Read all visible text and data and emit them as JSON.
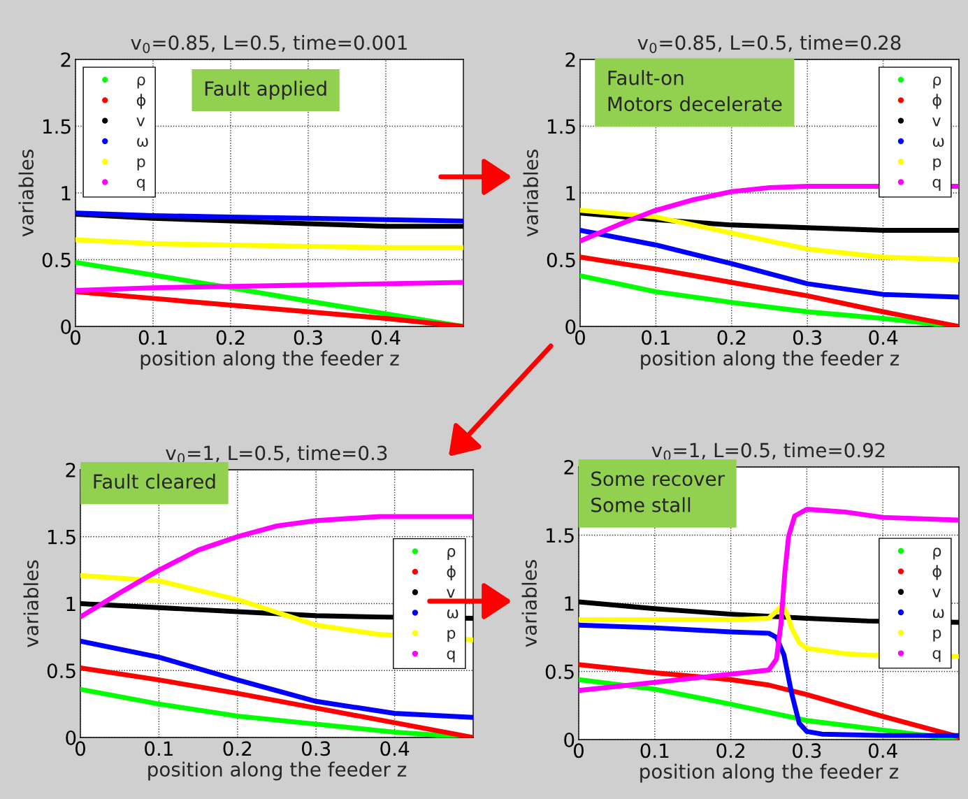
{
  "chart_data": [
    {
      "type": "line",
      "title": "v$_{0}$=0.85, L=0.5, time=0.001",
      "xlabel": "position along the feeder z",
      "ylabel": "variables",
      "xlim": [
        0,
        0.5
      ],
      "ylim": [
        0,
        2
      ],
      "xticks": [
        0,
        0.1,
        0.2,
        0.3,
        0.4
      ],
      "yticks": [
        0,
        0.5,
        1,
        1.5,
        2
      ],
      "grid": true,
      "legend": "top left",
      "annotations": [
        "Fault applied"
      ],
      "series": [
        {
          "name": "ρ",
          "color": "#00ff00",
          "x": [
            0,
            0.1,
            0.2,
            0.3,
            0.4,
            0.5
          ],
          "values": [
            0.48,
            0.385,
            0.29,
            0.19,
            0.095,
            0.0
          ]
        },
        {
          "name": "ϕ",
          "color": "#ff0000",
          "x": [
            0,
            0.1,
            0.2,
            0.3,
            0.4,
            0.5
          ],
          "values": [
            0.26,
            0.21,
            0.16,
            0.11,
            0.06,
            0.0
          ]
        },
        {
          "name": "v",
          "color": "#000000",
          "x": [
            0,
            0.1,
            0.2,
            0.3,
            0.4,
            0.5
          ],
          "values": [
            0.84,
            0.81,
            0.79,
            0.77,
            0.75,
            0.75
          ]
        },
        {
          "name": "ω",
          "color": "#0000ff",
          "x": [
            0,
            0.1,
            0.2,
            0.3,
            0.4,
            0.5
          ],
          "values": [
            0.85,
            0.83,
            0.82,
            0.81,
            0.8,
            0.79
          ]
        },
        {
          "name": "p",
          "color": "#ffff00",
          "x": [
            0,
            0.1,
            0.2,
            0.3,
            0.4,
            0.5
          ],
          "values": [
            0.65,
            0.62,
            0.61,
            0.6,
            0.59,
            0.59
          ]
        },
        {
          "name": "q",
          "color": "#ff00ff",
          "x": [
            0,
            0.1,
            0.2,
            0.3,
            0.4,
            0.5
          ],
          "values": [
            0.27,
            0.29,
            0.3,
            0.31,
            0.32,
            0.33
          ]
        }
      ]
    },
    {
      "type": "line",
      "title": "v$_{0}$=0.85, L=0.5, time=0.28",
      "xlabel": "position along the feeder z",
      "ylabel": "variables",
      "xlim": [
        0,
        0.5
      ],
      "ylim": [
        0,
        2
      ],
      "xticks": [
        0,
        0.1,
        0.2,
        0.3,
        0.4
      ],
      "yticks": [
        0,
        0.5,
        1,
        1.5,
        2
      ],
      "grid": true,
      "legend": "top right",
      "annotations": [
        "Fault-on\nMotors decelerate"
      ],
      "series": [
        {
          "name": "ρ",
          "color": "#00ff00",
          "x": [
            0,
            0.1,
            0.2,
            0.3,
            0.4,
            0.5
          ],
          "values": [
            0.38,
            0.26,
            0.18,
            0.11,
            0.06,
            0.0
          ]
        },
        {
          "name": "ϕ",
          "color": "#ff0000",
          "x": [
            0,
            0.1,
            0.2,
            0.3,
            0.4,
            0.5
          ],
          "values": [
            0.52,
            0.43,
            0.33,
            0.23,
            0.11,
            0.0
          ]
        },
        {
          "name": "v",
          "color": "#000000",
          "x": [
            0,
            0.1,
            0.2,
            0.3,
            0.4,
            0.5
          ],
          "values": [
            0.85,
            0.8,
            0.76,
            0.74,
            0.72,
            0.72
          ]
        },
        {
          "name": "ω",
          "color": "#0000ff",
          "x": [
            0,
            0.1,
            0.2,
            0.3,
            0.4,
            0.5
          ],
          "values": [
            0.72,
            0.61,
            0.47,
            0.32,
            0.24,
            0.22
          ]
        },
        {
          "name": "p",
          "color": "#ffff00",
          "x": [
            0,
            0.1,
            0.2,
            0.3,
            0.4,
            0.5
          ],
          "values": [
            0.87,
            0.82,
            0.7,
            0.58,
            0.52,
            0.5
          ]
        },
        {
          "name": "q",
          "color": "#ff00ff",
          "x": [
            0,
            0.05,
            0.1,
            0.15,
            0.2,
            0.25,
            0.3,
            0.38,
            0.5
          ],
          "values": [
            0.64,
            0.76,
            0.87,
            0.95,
            1.01,
            1.04,
            1.05,
            1.05,
            1.05
          ]
        }
      ]
    },
    {
      "type": "line",
      "title": "v$_{0}$=1, L=0.5, time=0.3",
      "xlabel": "position along the feeder z",
      "ylabel": "variables",
      "xlim": [
        0,
        0.5
      ],
      "ylim": [
        0,
        2
      ],
      "xticks": [
        0,
        0.1,
        0.2,
        0.3,
        0.4
      ],
      "yticks": [
        0,
        0.5,
        1,
        1.5,
        2
      ],
      "grid": true,
      "legend": "right",
      "annotations": [
        "Fault cleared"
      ],
      "series": [
        {
          "name": "ρ",
          "color": "#00ff00",
          "x": [
            0,
            0.1,
            0.2,
            0.3,
            0.4,
            0.5
          ],
          "values": [
            0.36,
            0.25,
            0.16,
            0.1,
            0.04,
            0.0
          ]
        },
        {
          "name": "ϕ",
          "color": "#ff0000",
          "x": [
            0,
            0.1,
            0.2,
            0.3,
            0.4,
            0.5
          ],
          "values": [
            0.52,
            0.43,
            0.33,
            0.22,
            0.11,
            0.0
          ]
        },
        {
          "name": "v",
          "color": "#000000",
          "x": [
            0,
            0.1,
            0.2,
            0.3,
            0.38,
            0.5
          ],
          "values": [
            1.0,
            0.97,
            0.94,
            0.91,
            0.9,
            0.89
          ]
        },
        {
          "name": "ω",
          "color": "#0000ff",
          "x": [
            0,
            0.1,
            0.2,
            0.3,
            0.4,
            0.5
          ],
          "values": [
            0.72,
            0.6,
            0.43,
            0.27,
            0.18,
            0.15
          ]
        },
        {
          "name": "p",
          "color": "#ffff00",
          "x": [
            0,
            0.1,
            0.2,
            0.3,
            0.38,
            0.5
          ],
          "values": [
            1.21,
            1.17,
            1.03,
            0.84,
            0.77,
            0.73
          ]
        },
        {
          "name": "q",
          "color": "#ff00ff",
          "x": [
            0,
            0.05,
            0.1,
            0.15,
            0.2,
            0.25,
            0.3,
            0.38,
            0.5
          ],
          "values": [
            0.9,
            1.08,
            1.25,
            1.4,
            1.5,
            1.58,
            1.62,
            1.65,
            1.65
          ]
        }
      ]
    },
    {
      "type": "line",
      "title": "v$_{0}$=1, L=0.5, time=0.92",
      "xlabel": "position along the feeder z",
      "ylabel": "variables",
      "xlim": [
        0,
        0.5
      ],
      "ylim": [
        0,
        2
      ],
      "xticks": [
        0,
        0.1,
        0.2,
        0.3,
        0.4
      ],
      "yticks": [
        0,
        0.5,
        1,
        1.5,
        2
      ],
      "grid": true,
      "legend": "right",
      "annotations": [
        "Some recover\nSome stall"
      ],
      "series": [
        {
          "name": "ρ",
          "color": "#00ff00",
          "x": [
            0,
            0.1,
            0.2,
            0.3,
            0.4,
            0.5
          ],
          "values": [
            0.44,
            0.37,
            0.26,
            0.14,
            0.07,
            0.0
          ]
        },
        {
          "name": "ϕ",
          "color": "#ff0000",
          "x": [
            0,
            0.1,
            0.2,
            0.25,
            0.3,
            0.4,
            0.5
          ],
          "values": [
            0.55,
            0.49,
            0.44,
            0.4,
            0.33,
            0.17,
            0.02
          ]
        },
        {
          "name": "v",
          "color": "#000000",
          "x": [
            0,
            0.1,
            0.2,
            0.3,
            0.38,
            0.5
          ],
          "values": [
            1.01,
            0.96,
            0.92,
            0.89,
            0.87,
            0.86
          ]
        },
        {
          "name": "ω",
          "color": "#0000ff",
          "x": [
            0,
            0.1,
            0.2,
            0.25,
            0.26,
            0.27,
            0.28,
            0.29,
            0.3,
            0.32,
            0.4,
            0.5
          ],
          "values": [
            0.84,
            0.82,
            0.79,
            0.78,
            0.75,
            0.62,
            0.34,
            0.12,
            0.06,
            0.04,
            0.03,
            0.03
          ]
        },
        {
          "name": "p",
          "color": "#ffff00",
          "x": [
            0,
            0.1,
            0.2,
            0.25,
            0.26,
            0.268,
            0.274,
            0.28,
            0.29,
            0.3,
            0.35,
            0.38,
            0.5
          ],
          "values": [
            0.88,
            0.88,
            0.88,
            0.89,
            0.94,
            0.99,
            0.92,
            0.82,
            0.71,
            0.67,
            0.63,
            0.62,
            0.61
          ]
        },
        {
          "name": "q",
          "color": "#ff00ff",
          "x": [
            0,
            0.1,
            0.2,
            0.25,
            0.26,
            0.266,
            0.271,
            0.276,
            0.284,
            0.3,
            0.35,
            0.4,
            0.5
          ],
          "values": [
            0.36,
            0.42,
            0.48,
            0.51,
            0.59,
            0.85,
            1.22,
            1.49,
            1.64,
            1.69,
            1.67,
            1.63,
            1.61
          ]
        }
      ]
    }
  ]
}
